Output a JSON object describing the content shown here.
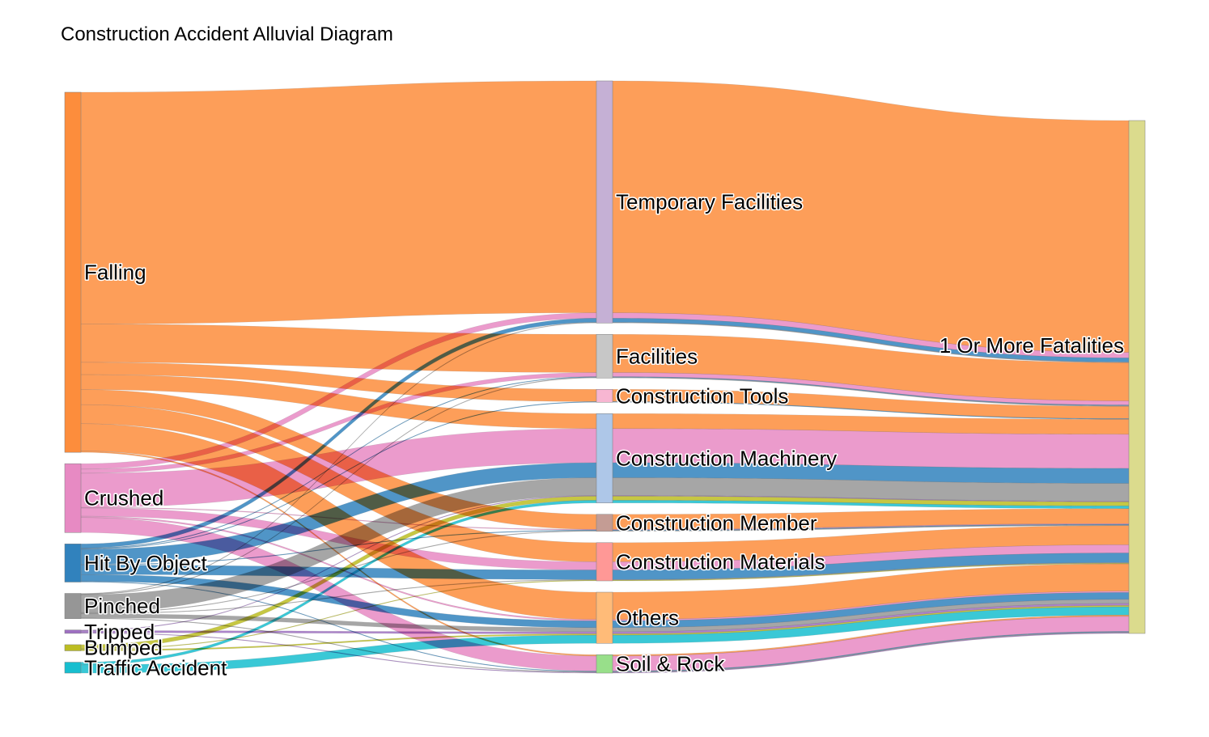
{
  "chart_data": {
    "type": "sankey",
    "title": "Construction Accident Alluvial Diagram",
    "columns": [
      [
        "Falling",
        "Crushed",
        "Hit By Object",
        "Pinched",
        "Tripped",
        "Bumped",
        "Traffic Accident"
      ],
      [
        "Temporary Facilities",
        "Facilities",
        "Construction Tools",
        "Construction Machinery",
        "Construction Member",
        "Construction Materials",
        "Others",
        "Soil & Rock"
      ],
      [
        "1 Or More Fatalities"
      ]
    ],
    "node_colors": {
      "Falling": "#fd8d3c",
      "Crushed": "#e78ac3",
      "Hit By Object": "#3182bd",
      "Pinched": "#969696",
      "Tripped": "#9e6fc2",
      "Bumped": "#bcbd22",
      "Traffic Accident": "#17becf",
      "Temporary Facilities": "#c5b0d5",
      "Facilities": "#c7c7c7",
      "Construction Tools": "#f7b6d2",
      "Construction Machinery": "#aec7e8",
      "Construction Member": "#c49c94",
      "Construction Materials": "#ff9896",
      "Others": "#ffbb78",
      "Soil & Rock": "#98df8a",
      "1 Or More Fatalities": "#dbdb8d"
    },
    "links": [
      {
        "source": "Falling",
        "target": "Temporary Facilities",
        "value": 170
      },
      {
        "source": "Falling",
        "target": "Facilities",
        "value": 28
      },
      {
        "source": "Falling",
        "target": "Construction Tools",
        "value": 9
      },
      {
        "source": "Falling",
        "target": "Construction Machinery",
        "value": 11
      },
      {
        "source": "Falling",
        "target": "Construction Member",
        "value": 11
      },
      {
        "source": "Falling",
        "target": "Construction Materials",
        "value": 14
      },
      {
        "source": "Falling",
        "target": "Others",
        "value": 20
      },
      {
        "source": "Falling",
        "target": "Soil & Rock",
        "value": 1
      },
      {
        "source": "Crushed",
        "target": "Temporary Facilities",
        "value": 4
      },
      {
        "source": "Crushed",
        "target": "Facilities",
        "value": 3
      },
      {
        "source": "Crushed",
        "target": "Construction Machinery",
        "value": 25
      },
      {
        "source": "Crushed",
        "target": "Construction Member",
        "value": 0.5
      },
      {
        "source": "Crushed",
        "target": "Construction Materials",
        "value": 6
      },
      {
        "source": "Crushed",
        "target": "Others",
        "value": 1
      },
      {
        "source": "Crushed",
        "target": "Soil & Rock",
        "value": 11
      },
      {
        "source": "Hit By Object",
        "target": "Temporary Facilities",
        "value": 3
      },
      {
        "source": "Hit By Object",
        "target": "Facilities",
        "value": 0.5
      },
      {
        "source": "Hit By Object",
        "target": "Construction Tools",
        "value": 0.5
      },
      {
        "source": "Hit By Object",
        "target": "Construction Machinery",
        "value": 11
      },
      {
        "source": "Hit By Object",
        "target": "Construction Member",
        "value": 0.5
      },
      {
        "source": "Hit By Object",
        "target": "Construction Materials",
        "value": 7
      },
      {
        "source": "Hit By Object",
        "target": "Others",
        "value": 5
      },
      {
        "source": "Hit By Object",
        "target": "Soil & Rock",
        "value": 0.5
      },
      {
        "source": "Pinched",
        "target": "Temporary Facilities",
        "value": 0.5
      },
      {
        "source": "Pinched",
        "target": "Facilities",
        "value": 0.5
      },
      {
        "source": "Pinched",
        "target": "Construction Machinery",
        "value": 13
      },
      {
        "source": "Pinched",
        "target": "Construction Member",
        "value": 0.5
      },
      {
        "source": "Pinched",
        "target": "Construction Materials",
        "value": 0.5
      },
      {
        "source": "Pinched",
        "target": "Others",
        "value": 3
      },
      {
        "source": "Pinched",
        "target": "Soil & Rock",
        "value": 0.5
      },
      {
        "source": "Tripped",
        "target": "Construction Machinery",
        "value": 0.5
      },
      {
        "source": "Tripped",
        "target": "Others",
        "value": 1.5
      },
      {
        "source": "Tripped",
        "target": "Soil & Rock",
        "value": 0.5
      },
      {
        "source": "Bumped",
        "target": "Construction Machinery",
        "value": 3
      },
      {
        "source": "Bumped",
        "target": "Construction Materials",
        "value": 0.5
      },
      {
        "source": "Bumped",
        "target": "Others",
        "value": 1
      },
      {
        "source": "Traffic Accident",
        "target": "Construction Machinery",
        "value": 2
      },
      {
        "source": "Traffic Accident",
        "target": "Others",
        "value": 6
      },
      {
        "source": "Temporary Facilities",
        "target": "1 Or More Fatalities",
        "value": 177.5
      },
      {
        "source": "Facilities",
        "target": "1 Or More Fatalities",
        "value": 32
      },
      {
        "source": "Construction Tools",
        "target": "1 Or More Fatalities",
        "value": 9.5
      },
      {
        "source": "Construction Machinery",
        "target": "1 Or More Fatalities",
        "value": 65.5
      },
      {
        "source": "Construction Member",
        "target": "1 Or More Fatalities",
        "value": 12.5
      },
      {
        "source": "Construction Materials",
        "target": "1 Or More Fatalities",
        "value": 28
      },
      {
        "source": "Others",
        "target": "1 Or More Fatalities",
        "value": 37.5
      },
      {
        "source": "Soil & Rock",
        "target": "1 Or More Fatalities",
        "value": 13.5
      }
    ]
  }
}
